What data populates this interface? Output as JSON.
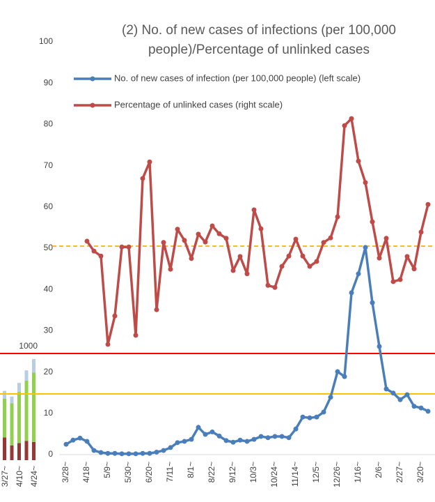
{
  "chart_data": [
    {
      "type": "line",
      "title": [
        "(2) No. of new cases of infections (per 100,000",
        "people)/Percentage of unlinked cases"
      ],
      "categories": [
        "3/28~",
        null,
        null,
        "4/18~",
        null,
        null,
        "5/9~",
        null,
        null,
        "5/30~",
        null,
        null,
        "6/20~",
        null,
        null,
        "7/11~",
        null,
        null,
        "8/1~",
        null,
        null,
        "8/22~",
        null,
        null,
        "9/12~",
        null,
        null,
        "10/3~",
        null,
        null,
        "10/24~",
        null,
        null,
        "11/14~",
        null,
        null,
        "12/5~",
        null,
        null,
        "12/26~",
        null,
        null,
        "1/16~",
        null,
        null,
        "2/6~",
        null,
        null,
        "2/27~",
        null,
        null,
        "3/20~",
        null
      ],
      "series": [
        {
          "name": "No. of new cases of infection (per 100,000 people) (left scale)",
          "color": "#4a7ebb",
          "values": [
            2.5,
            3.5,
            4,
            3.2,
            1,
            0.5,
            0.3,
            0.3,
            0.2,
            0.2,
            0.2,
            0.3,
            0.3,
            0.6,
            1,
            1.7,
            2.9,
            3.2,
            3.7,
            6.6,
            4.9,
            5.5,
            4.5,
            3.4,
            3,
            3.5,
            3.2,
            3.7,
            4.4,
            4.1,
            4.4,
            4.4,
            4.1,
            6.2,
            9.1,
            8.9,
            9.1,
            10.3,
            13.9,
            20.1,
            18.9,
            39.2,
            43.8,
            50.2,
            36.8,
            26.2,
            15.9,
            14.9,
            13.3,
            14.5,
            11.7,
            11.3,
            10.5
          ]
        },
        {
          "name": "Percentage of unlinked cases (right scale)",
          "color": "#be4b48",
          "values": [
            null,
            null,
            null,
            51.7,
            49.3,
            48.1,
            26.7,
            33.6,
            50.3,
            50.3,
            28.9,
            66.9,
            70.9,
            35.1,
            51.4,
            44.9,
            54.6,
            51.9,
            47.5,
            53.4,
            51.5,
            55.4,
            53.5,
            52.4,
            44.6,
            48,
            43.8,
            59.3,
            54.7,
            41,
            40.5,
            45.6,
            48.1,
            52.2,
            48.1,
            45.6,
            46.8,
            51.4,
            52.5,
            57.6,
            79.7,
            81.4,
            71.1,
            65.9,
            56.4,
            47.6,
            52.4,
            41.9,
            42.4,
            48,
            45,
            53.9,
            60.6
          ]
        }
      ],
      "reference_lines": [
        {
          "value": 50.5,
          "color": "#f0c020",
          "dashed": true
        },
        {
          "value": 24.5,
          "color": "#ff0000",
          "dashed": false
        },
        {
          "value": 14.7,
          "color": "#ffc000",
          "dashed": false
        }
      ],
      "ylim": [
        0,
        100
      ],
      "yticks": [
        0,
        10,
        20,
        30,
        40,
        50,
        60,
        70,
        80,
        90,
        100
      ]
    },
    {
      "type": "stacked_bar",
      "categories": [
        "3/27~",
        null,
        "4/10~",
        null,
        "4/24~"
      ],
      "series": [
        {
          "color": "#953735",
          "values": [
            200,
            130,
            150,
            170,
            160
          ]
        },
        {
          "color": "#92d050",
          "values": [
            340,
            370,
            450,
            530,
            610
          ]
        },
        {
          "color": "#b9cde5",
          "values": [
            70,
            60,
            80,
            90,
            120
          ]
        }
      ],
      "yticks": [
        1000
      ]
    }
  ]
}
